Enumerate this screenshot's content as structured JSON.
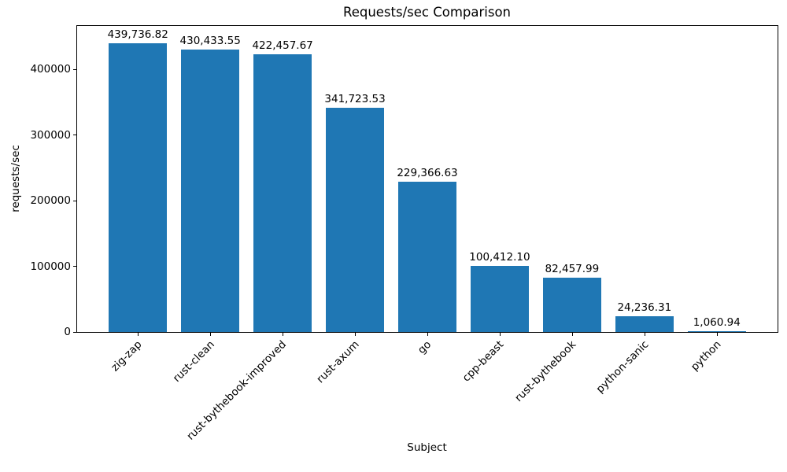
{
  "chart_data": {
    "type": "bar",
    "title": "Requests/sec Comparison",
    "xlabel": "Subject",
    "ylabel": "requests/sec",
    "categories": [
      "zig-zap",
      "rust-clean",
      "rust-bythebook-improved",
      "rust-axum",
      "go",
      "cpp-beast",
      "rust-bythebook",
      "python-sanic",
      "python"
    ],
    "values": [
      439736.82,
      430433.55,
      422457.67,
      341723.53,
      229366.63,
      100412.1,
      82457.99,
      24236.31,
      1060.94
    ],
    "value_labels": [
      "439,736.82",
      "430,433.55",
      "422,457.67",
      "341,723.53",
      "229,366.63",
      "100,412.10",
      "82,457.99",
      "24,236.31",
      "1,060.94"
    ],
    "yticks": [
      0,
      100000,
      200000,
      300000,
      400000
    ],
    "ytick_labels": [
      "0",
      "100000",
      "200000",
      "300000",
      "400000"
    ],
    "ylim": [
      0,
      466000
    ],
    "xlim": [
      -0.84,
      8.84
    ],
    "bar_width": 0.8,
    "bar_color": "#1f77b4",
    "grid": false,
    "legend_position": "none"
  }
}
